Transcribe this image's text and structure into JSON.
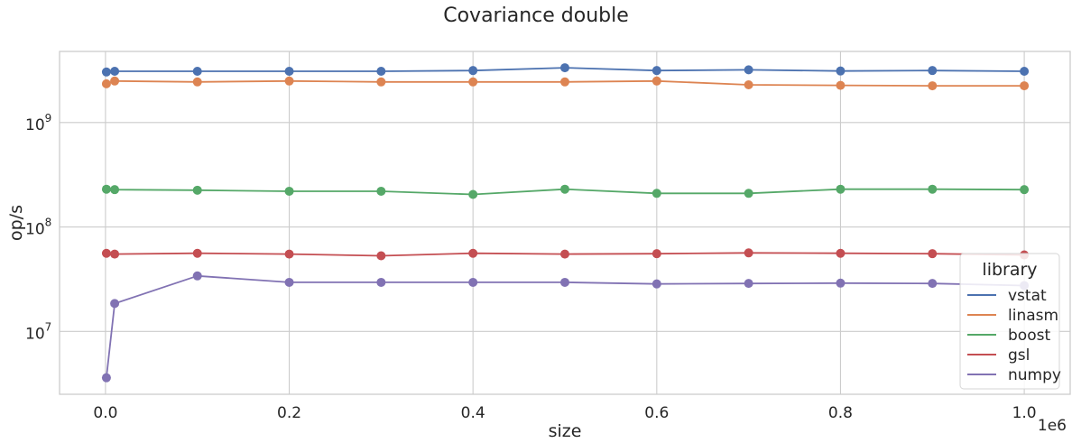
{
  "chart_data": {
    "type": "line",
    "title": "Covariance double",
    "xlabel": "size",
    "ylabel": "op/s",
    "x_offset_label": "1e6",
    "x_scale": "linear",
    "y_scale": "log",
    "xlim": [
      -50000,
      1050000
    ],
    "ylim": [
      2500000,
      4800000000
    ],
    "x_ticks": [
      0,
      200000,
      400000,
      600000,
      800000,
      1000000
    ],
    "x_tick_labels": [
      "0.0",
      "0.2",
      "0.4",
      "0.6",
      "0.8",
      "1.0"
    ],
    "y_ticks": [
      {
        "base": "10",
        "exp": "7",
        "value": 10000000
      },
      {
        "base": "10",
        "exp": "8",
        "value": 100000000
      },
      {
        "base": "10",
        "exp": "9",
        "value": 1000000000
      }
    ],
    "grid": true,
    "legend": {
      "title": "library",
      "placement": "bottom-right"
    },
    "x": [
      1000,
      10000,
      100000,
      200000,
      300000,
      400000,
      500000,
      600000,
      700000,
      800000,
      900000,
      1000000
    ],
    "series": [
      {
        "name": "vstat",
        "color": "#4c72b0",
        "values": [
          3050000000.0,
          3100000000.0,
          3100000000.0,
          3100000000.0,
          3100000000.0,
          3150000000.0,
          3350000000.0,
          3150000000.0,
          3200000000.0,
          3120000000.0,
          3150000000.0,
          3100000000.0
        ]
      },
      {
        "name": "linasm",
        "color": "#dd8452",
        "values": [
          2350000000.0,
          2500000000.0,
          2450000000.0,
          2500000000.0,
          2450000000.0,
          2450000000.0,
          2450000000.0,
          2500000000.0,
          2300000000.0,
          2270000000.0,
          2250000000.0,
          2250000000.0
        ]
      },
      {
        "name": "boost",
        "color": "#55a868",
        "values": [
          230000000.0,
          228000000.0,
          225000000.0,
          220000000.0,
          220000000.0,
          205000000.0,
          230000000.0,
          210000000.0,
          210000000.0,
          230000000.0,
          230000000.0,
          228000000.0
        ]
      },
      {
        "name": "gsl",
        "color": "#c44e52",
        "values": [
          56000000.0,
          55000000.0,
          56000000.0,
          55000000.0,
          53000000.0,
          56000000.0,
          55000000.0,
          55500000.0,
          56500000.0,
          56000000.0,
          55500000.0,
          54000000.0
        ]
      },
      {
        "name": "numpy",
        "color": "#8172b3",
        "values": [
          3600000.0,
          18500000.0,
          34000000.0,
          29500000.0,
          29500000.0,
          29500000.0,
          29500000.0,
          28500000.0,
          28800000.0,
          29000000.0,
          28800000.0,
          27500000.0
        ]
      }
    ]
  }
}
